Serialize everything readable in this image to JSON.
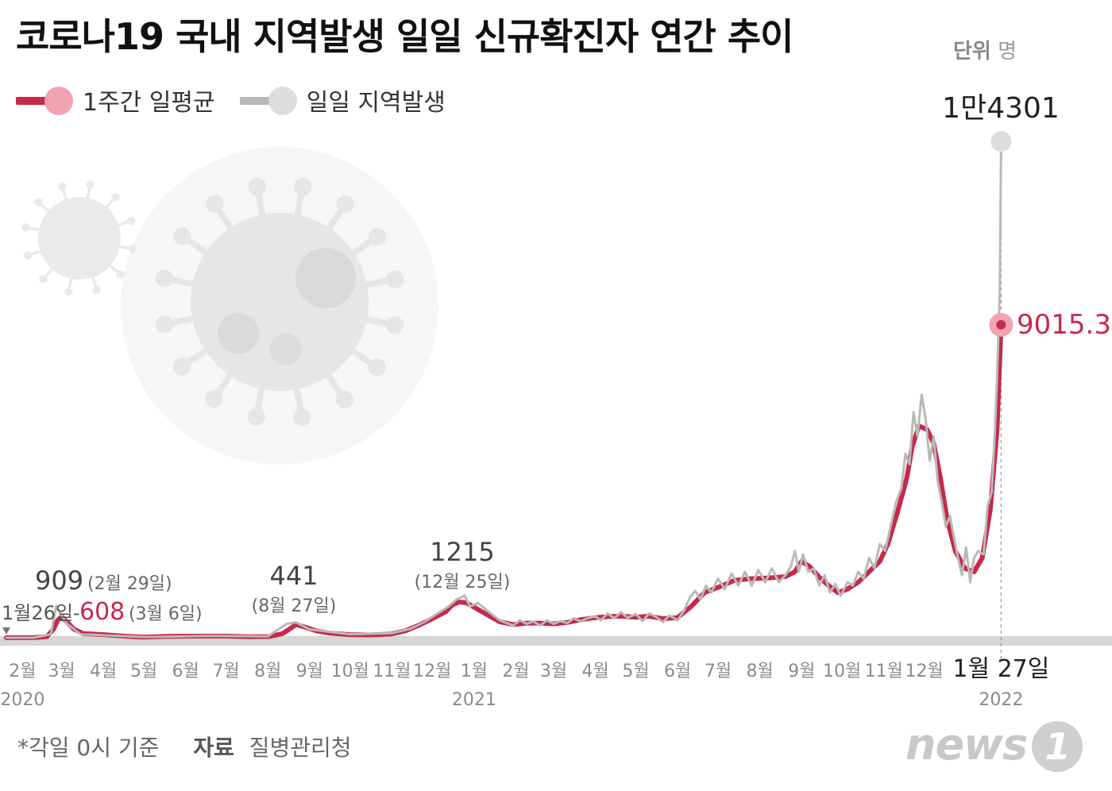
{
  "header": {
    "title": "코로나19 국내 지역발생 일일 신규확진자 연간 추이",
    "unit_label": "단위",
    "unit_value": "명"
  },
  "legend": {
    "weekly_avg": "1주간 일평균",
    "daily": "일일 지역발생"
  },
  "colors": {
    "weekly_avg": "#c8284a",
    "weekly_avg_dot": "#f2a3b1",
    "daily": "#b9b9b9",
    "daily_dot": "#dddddd",
    "baseline": "#d6d6d6",
    "axis_text": "#8a8a8a",
    "annotation": "#555555"
  },
  "footer": {
    "note": "*각일 0시 기준",
    "source_label": "자료",
    "source": "질병관리청"
  },
  "logo": {
    "text": "news",
    "mark": "1"
  },
  "chart_data": {
    "type": "line",
    "x_unit": "days from 2020-01-20",
    "ylim": [
      0,
      14301
    ],
    "grid": false,
    "legend_position": "top-left",
    "x_ticks": [
      {
        "label": "2월",
        "day": 12,
        "year": "2020"
      },
      {
        "label": "3월",
        "day": 41
      },
      {
        "label": "4월",
        "day": 72
      },
      {
        "label": "5월",
        "day": 102
      },
      {
        "label": "6월",
        "day": 133
      },
      {
        "label": "7월",
        "day": 163
      },
      {
        "label": "8월",
        "day": 194
      },
      {
        "label": "9월",
        "day": 225
      },
      {
        "label": "10월",
        "day": 255
      },
      {
        "label": "11월",
        "day": 286
      },
      {
        "label": "12월",
        "day": 316
      },
      {
        "label": "1월",
        "day": 347,
        "year": "2021"
      },
      {
        "label": "2월",
        "day": 378
      },
      {
        "label": "3월",
        "day": 406
      },
      {
        "label": "4월",
        "day": 437
      },
      {
        "label": "5월",
        "day": 467
      },
      {
        "label": "6월",
        "day": 498
      },
      {
        "label": "7월",
        "day": 528
      },
      {
        "label": "8월",
        "day": 559
      },
      {
        "label": "9월",
        "day": 590
      },
      {
        "label": "10월",
        "day": 620
      },
      {
        "label": "11월",
        "day": 651
      },
      {
        "label": "12월",
        "day": 681
      },
      {
        "label": "1월 27일",
        "day": 738,
        "year": "2022",
        "emphasis": true
      }
    ],
    "series": [
      {
        "name": "1주간 일평균",
        "points": [
          [
            0,
            0
          ],
          [
            6,
            2
          ],
          [
            20,
            3
          ],
          [
            30,
            30
          ],
          [
            35,
            250
          ],
          [
            38,
            500
          ],
          [
            41,
            608
          ],
          [
            45,
            450
          ],
          [
            50,
            250
          ],
          [
            57,
            120
          ],
          [
            72,
            90
          ],
          [
            90,
            40
          ],
          [
            102,
            15
          ],
          [
            120,
            40
          ],
          [
            133,
            45
          ],
          [
            150,
            45
          ],
          [
            163,
            45
          ],
          [
            180,
            30
          ],
          [
            195,
            35
          ],
          [
            205,
            120
          ],
          [
            210,
            250
          ],
          [
            215,
            380
          ],
          [
            222,
            300
          ],
          [
            230,
            200
          ],
          [
            240,
            130
          ],
          [
            255,
            90
          ],
          [
            270,
            80
          ],
          [
            286,
            110
          ],
          [
            296,
            200
          ],
          [
            306,
            360
          ],
          [
            316,
            550
          ],
          [
            326,
            750
          ],
          [
            331,
            950
          ],
          [
            336,
            1030
          ],
          [
            341,
            1010
          ],
          [
            347,
            880
          ],
          [
            356,
            680
          ],
          [
            366,
            460
          ],
          [
            376,
            380
          ],
          [
            386,
            420
          ],
          [
            396,
            420
          ],
          [
            406,
            400
          ],
          [
            416,
            440
          ],
          [
            426,
            520
          ],
          [
            437,
            580
          ],
          [
            447,
            610
          ],
          [
            457,
            620
          ],
          [
            467,
            590
          ],
          [
            477,
            620
          ],
          [
            487,
            550
          ],
          [
            498,
            580
          ],
          [
            508,
            900
          ],
          [
            518,
            1300
          ],
          [
            528,
            1450
          ],
          [
            540,
            1650
          ],
          [
            552,
            1700
          ],
          [
            565,
            1720
          ],
          [
            578,
            1760
          ],
          [
            585,
            1900
          ],
          [
            590,
            2200
          ],
          [
            596,
            2050
          ],
          [
            603,
            1750
          ],
          [
            610,
            1500
          ],
          [
            617,
            1300
          ],
          [
            624,
            1400
          ],
          [
            632,
            1600
          ],
          [
            640,
            1900
          ],
          [
            648,
            2200
          ],
          [
            654,
            2700
          ],
          [
            661,
            3600
          ],
          [
            668,
            4600
          ],
          [
            672,
            5500
          ],
          [
            677,
            6100
          ],
          [
            683,
            6000
          ],
          [
            688,
            5600
          ],
          [
            693,
            4600
          ],
          [
            698,
            3400
          ],
          [
            704,
            2500
          ],
          [
            711,
            2000
          ],
          [
            718,
            1900
          ],
          [
            724,
            2300
          ],
          [
            730,
            3700
          ],
          [
            735,
            6000
          ],
          [
            738,
            9015.3
          ]
        ]
      },
      {
        "name": "일일 지역발생",
        "points": [
          [
            0,
            0
          ],
          [
            20,
            0
          ],
          [
            33,
            100
          ],
          [
            37,
            909
          ],
          [
            40,
            700
          ],
          [
            45,
            400
          ],
          [
            55,
            100
          ],
          [
            72,
            70
          ],
          [
            102,
            20
          ],
          [
            150,
            50
          ],
          [
            194,
            40
          ],
          [
            208,
            400
          ],
          [
            215,
            441
          ],
          [
            225,
            240
          ],
          [
            255,
            100
          ],
          [
            286,
            130
          ],
          [
            300,
            260
          ],
          [
            310,
            450
          ],
          [
            320,
            700
          ],
          [
            328,
            900
          ],
          [
            334,
            1100
          ],
          [
            340,
            1215
          ],
          [
            344,
            900
          ],
          [
            350,
            1000
          ],
          [
            356,
            800
          ],
          [
            366,
            500
          ],
          [
            376,
            350
          ],
          [
            381,
            500
          ],
          [
            386,
            400
          ],
          [
            391,
            470
          ],
          [
            396,
            350
          ],
          [
            401,
            500
          ],
          [
            406,
            400
          ],
          [
            411,
            480
          ],
          [
            416,
            420
          ],
          [
            421,
            560
          ],
          [
            426,
            470
          ],
          [
            431,
            560
          ],
          [
            437,
            620
          ],
          [
            441,
            500
          ],
          [
            446,
            700
          ],
          [
            451,
            560
          ],
          [
            456,
            730
          ],
          [
            461,
            580
          ],
          [
            467,
            680
          ],
          [
            472,
            480
          ],
          [
            477,
            700
          ],
          [
            482,
            600
          ],
          [
            487,
            450
          ],
          [
            492,
            640
          ],
          [
            498,
            500
          ],
          [
            503,
            800
          ],
          [
            507,
            1150
          ],
          [
            511,
            1350
          ],
          [
            515,
            1100
          ],
          [
            519,
            1500
          ],
          [
            523,
            1300
          ],
          [
            528,
            1700
          ],
          [
            533,
            1400
          ],
          [
            538,
            1850
          ],
          [
            543,
            1500
          ],
          [
            548,
            1900
          ],
          [
            553,
            1500
          ],
          [
            558,
            1950
          ],
          [
            563,
            1600
          ],
          [
            568,
            2000
          ],
          [
            573,
            1600
          ],
          [
            578,
            1800
          ],
          [
            582,
            2050
          ],
          [
            585,
            2500
          ],
          [
            588,
            1900
          ],
          [
            591,
            2400
          ],
          [
            595,
            1900
          ],
          [
            599,
            2000
          ],
          [
            603,
            1500
          ],
          [
            607,
            1800
          ],
          [
            611,
            1300
          ],
          [
            615,
            1550
          ],
          [
            619,
            1200
          ],
          [
            624,
            1600
          ],
          [
            628,
            1500
          ],
          [
            632,
            1900
          ],
          [
            636,
            1700
          ],
          [
            640,
            2300
          ],
          [
            644,
            2000
          ],
          [
            648,
            2700
          ],
          [
            652,
            2500
          ],
          [
            656,
            3200
          ],
          [
            660,
            3900
          ],
          [
            664,
            4300
          ],
          [
            667,
            5300
          ],
          [
            670,
            5000
          ],
          [
            673,
            6500
          ],
          [
            676,
            5800
          ],
          [
            679,
            7000
          ],
          [
            682,
            6300
          ],
          [
            685,
            5100
          ],
          [
            688,
            5800
          ],
          [
            691,
            4500
          ],
          [
            694,
            3900
          ],
          [
            697,
            3200
          ],
          [
            700,
            3500
          ],
          [
            703,
            2900
          ],
          [
            706,
            2300
          ],
          [
            709,
            1800
          ],
          [
            712,
            2600
          ],
          [
            715,
            1600
          ],
          [
            718,
            2300
          ],
          [
            721,
            2500
          ],
          [
            725,
            2400
          ],
          [
            728,
            3800
          ],
          [
            731,
            4200
          ],
          [
            733,
            5600
          ],
          [
            735,
            7500
          ],
          [
            737,
            10000
          ],
          [
            738,
            14301
          ]
        ]
      }
    ],
    "annotations": [
      {
        "value": "909",
        "sub": "(2월 29일)",
        "day": 37,
        "y": 909
      },
      {
        "value": "1월26일- ",
        "accent": "608",
        "sub": "(3월 6일)",
        "day": 41,
        "y": 608
      },
      {
        "value": "441",
        "sub": "(8월 27일)",
        "day": 215,
        "y": 441
      },
      {
        "value": "1215",
        "sub": "(12월 25일)",
        "day": 340,
        "y": 1215
      },
      {
        "value": "1만4301",
        "day": 738,
        "y": 14301
      },
      {
        "value": "9015.3",
        "day": 738,
        "y": 9015.3
      }
    ]
  }
}
